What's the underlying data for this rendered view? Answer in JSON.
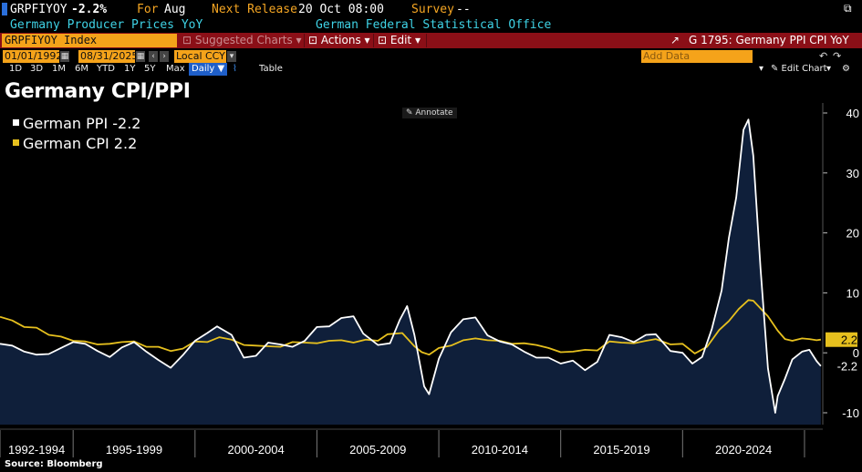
{
  "header": {
    "ticker": "GRPFIYOY",
    "change": "-2.2%",
    "for_label": "For",
    "for_value": "Aug",
    "next_label": "Next Release",
    "next_value": "20 Oct 08:00",
    "survey_label": "Survey",
    "survey_value": "--",
    "name": "Germany Producer Prices YoY",
    "source_name": "German Federal Statistical Office"
  },
  "toolbar": {
    "security": "GRPFIYOY Index",
    "suggested": "⊡ Suggested Charts",
    "suggested_arrow": "▾",
    "actions": "⊡ Actions",
    "actions_arrow": "▾",
    "edit": "⊡ Edit",
    "edit_arrow": "▾",
    "chart_name": "G 1795: Germany PPI CPI YoY"
  },
  "datebar": {
    "start": "01/01/1992",
    "end": "08/31/2025",
    "currency": "Local CCY",
    "add_data_placeholder": "Add Data"
  },
  "periods": [
    "1D",
    "3D",
    "1M",
    "6M",
    "YTD",
    "1Y",
    "5Y",
    "Max"
  ],
  "frequency": "Daily ▼",
  "table_label": "Table",
  "edit_chart": "✎ Edit Chart",
  "annotate": "✎ Annotate",
  "title": "Germany CPI/PPI",
  "source": "Source: Bloomberg",
  "colors": {
    "ppi": "#ffffff",
    "cpi": "#e6c01e",
    "area_fill": "#0f1f3a",
    "toolbar": "#8b0f17",
    "accent_orange": "#f5a31a"
  },
  "chart_data": {
    "type": "line",
    "title": "Germany CPI/PPI",
    "xlabel": "",
    "ylabel": "",
    "ylim": [
      -12,
      42
    ],
    "yticks": [
      -10,
      0,
      10,
      20,
      30,
      40
    ],
    "xlim": [
      1992.0,
      2025.75
    ],
    "x_periods": [
      "1992-1994",
      "1995-1999",
      "2000-2004",
      "2005-2009",
      "2010-2014",
      "2015-2019",
      "2020-2024"
    ],
    "x_period_bounds": [
      1992,
      1995,
      2000,
      2005,
      2010,
      2015,
      2020,
      2025
    ],
    "grid": false,
    "legend_position": "top-left",
    "series": [
      {
        "name": "German PPI",
        "legend_value": "-2.2",
        "last_label": "-2.2",
        "area": true,
        "x": [
          1992.0,
          1992.5,
          1993.0,
          1993.5,
          1994.0,
          1994.5,
          1995.0,
          1995.5,
          1996.0,
          1996.5,
          1997.0,
          1997.5,
          1998.0,
          1998.5,
          1999.0,
          1999.5,
          2000.0,
          2000.5,
          2000.9,
          2001.5,
          2002.0,
          2002.5,
          2003.0,
          2003.5,
          2004.0,
          2004.5,
          2005.0,
          2005.5,
          2006.0,
          2006.5,
          2006.9,
          2007.5,
          2008.0,
          2008.4,
          2008.7,
          2009.0,
          2009.4,
          2009.6,
          2010.0,
          2010.5,
          2011.0,
          2011.5,
          2012.0,
          2012.5,
          2013.0,
          2013.5,
          2014.0,
          2014.5,
          2015.0,
          2015.5,
          2016.0,
          2016.5,
          2017.0,
          2017.5,
          2018.0,
          2018.5,
          2018.9,
          2019.5,
          2020.0,
          2020.4,
          2020.8,
          2021.2,
          2021.6,
          2021.9,
          2022.2,
          2022.5,
          2022.7,
          2022.9,
          2023.2,
          2023.5,
          2023.8,
          2023.9,
          2024.2,
          2024.5,
          2024.9,
          2025.2,
          2025.5,
          2025.67
        ],
        "y": [
          1.5,
          1.2,
          0.2,
          -0.3,
          -0.2,
          0.8,
          1.8,
          1.5,
          0.3,
          -0.7,
          0.9,
          1.8,
          0.2,
          -1.2,
          -2.5,
          -0.4,
          2.0,
          3.3,
          4.4,
          3.0,
          -0.8,
          -0.5,
          1.7,
          1.4,
          1.0,
          2.0,
          4.3,
          4.4,
          5.8,
          6.1,
          3.2,
          1.3,
          1.6,
          5.5,
          7.8,
          3.0,
          -5.6,
          -6.9,
          -1.0,
          3.4,
          5.6,
          5.9,
          2.9,
          1.9,
          1.4,
          0.2,
          -0.8,
          -0.8,
          -1.8,
          -1.3,
          -2.9,
          -1.5,
          3.0,
          2.6,
          1.8,
          3.0,
          3.1,
          0.3,
          0.0,
          -1.8,
          -0.7,
          4.0,
          10.4,
          19.2,
          25.9,
          37.2,
          38.9,
          32.9,
          14.0,
          -2.6,
          -10.0,
          -7.2,
          -4.3,
          -1.1,
          0.2,
          0.5,
          -1.4,
          -2.2
        ]
      },
      {
        "name": "German CPI",
        "legend_value": "2.2",
        "last_label": "2.2",
        "area": false,
        "x": [
          1992.0,
          1992.5,
          1993.0,
          1993.5,
          1994.0,
          1994.5,
          1995.0,
          1995.5,
          1996.0,
          1996.5,
          1997.0,
          1997.5,
          1998.0,
          1998.5,
          1999.0,
          1999.5,
          2000.0,
          2000.5,
          2001.0,
          2001.5,
          2002.0,
          2002.5,
          2003.0,
          2003.5,
          2004.0,
          2004.5,
          2005.0,
          2005.5,
          2006.0,
          2006.5,
          2007.0,
          2007.5,
          2007.9,
          2008.5,
          2009.0,
          2009.3,
          2009.6,
          2010.0,
          2010.5,
          2011.0,
          2011.5,
          2012.0,
          2012.5,
          2013.0,
          2013.5,
          2014.0,
          2014.5,
          2015.0,
          2015.5,
          2016.0,
          2016.5,
          2017.0,
          2017.5,
          2018.0,
          2018.5,
          2018.9,
          2019.5,
          2020.0,
          2020.5,
          2021.0,
          2021.5,
          2021.9,
          2022.3,
          2022.7,
          2022.9,
          2023.2,
          2023.5,
          2023.9,
          2024.2,
          2024.5,
          2024.9,
          2025.2,
          2025.5,
          2025.67
        ],
        "y": [
          6.0,
          5.4,
          4.3,
          4.2,
          3.0,
          2.7,
          2.0,
          1.9,
          1.4,
          1.5,
          1.8,
          1.9,
          1.0,
          1.0,
          0.3,
          0.7,
          1.9,
          1.8,
          2.6,
          2.2,
          1.3,
          1.2,
          1.1,
          1.0,
          1.8,
          1.7,
          1.6,
          2.0,
          2.1,
          1.7,
          2.2,
          2.0,
          3.1,
          3.3,
          1.1,
          0.1,
          -0.3,
          0.8,
          1.2,
          2.1,
          2.4,
          2.1,
          2.0,
          1.5,
          1.6,
          1.3,
          0.8,
          0.1,
          0.2,
          0.5,
          0.4,
          1.9,
          1.7,
          1.6,
          2.0,
          2.3,
          1.4,
          1.5,
          -0.1,
          1.0,
          3.8,
          5.3,
          7.3,
          8.8,
          8.7,
          7.4,
          6.1,
          3.7,
          2.3,
          2.0,
          2.4,
          2.3,
          2.1,
          2.2
        ]
      }
    ]
  }
}
